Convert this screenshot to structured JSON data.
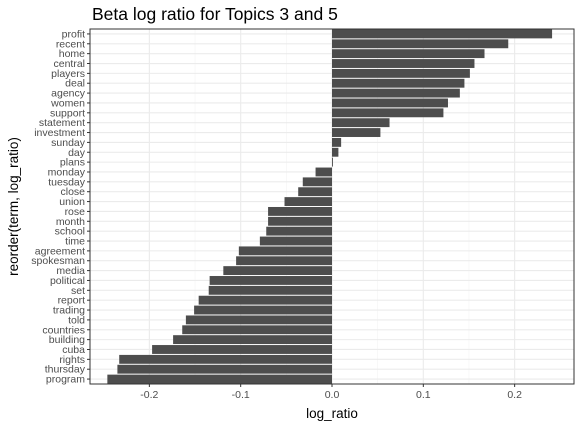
{
  "chart_data": {
    "type": "bar",
    "orientation": "horizontal",
    "title": "Beta log ratio for Topics 3 and 5",
    "xlabel": "log_ratio",
    "ylabel": "reorder(term, log_ratio)",
    "xlim": [
      -0.265,
      0.265
    ],
    "xticks": [
      -0.2,
      -0.1,
      0.0,
      0.1,
      0.2
    ],
    "xtick_labels": [
      "-0.2",
      "-0.1",
      "0.0",
      "0.1",
      "0.2"
    ],
    "grid": true,
    "bar_color": "#4d4d4d",
    "categories": [
      "profit",
      "recent",
      "home",
      "central",
      "players",
      "deal",
      "agency",
      "women",
      "support",
      "statement",
      "investment",
      "sunday",
      "day",
      "plans",
      "monday",
      "tuesday",
      "close",
      "union",
      "rose",
      "month",
      "school",
      "time",
      "agreement",
      "spokesman",
      "media",
      "political",
      "set",
      "report",
      "trading",
      "told",
      "countries",
      "building",
      "cuba",
      "rights",
      "thursday",
      "program"
    ],
    "values": [
      0.241,
      0.193,
      0.167,
      0.156,
      0.151,
      0.145,
      0.14,
      0.127,
      0.122,
      0.063,
      0.053,
      0.01,
      0.007,
      0.001,
      -0.018,
      -0.032,
      -0.037,
      -0.052,
      -0.07,
      -0.07,
      -0.072,
      -0.079,
      -0.102,
      -0.105,
      -0.119,
      -0.134,
      -0.135,
      -0.146,
      -0.151,
      -0.16,
      -0.164,
      -0.174,
      -0.197,
      -0.233,
      -0.235,
      -0.246
    ]
  }
}
